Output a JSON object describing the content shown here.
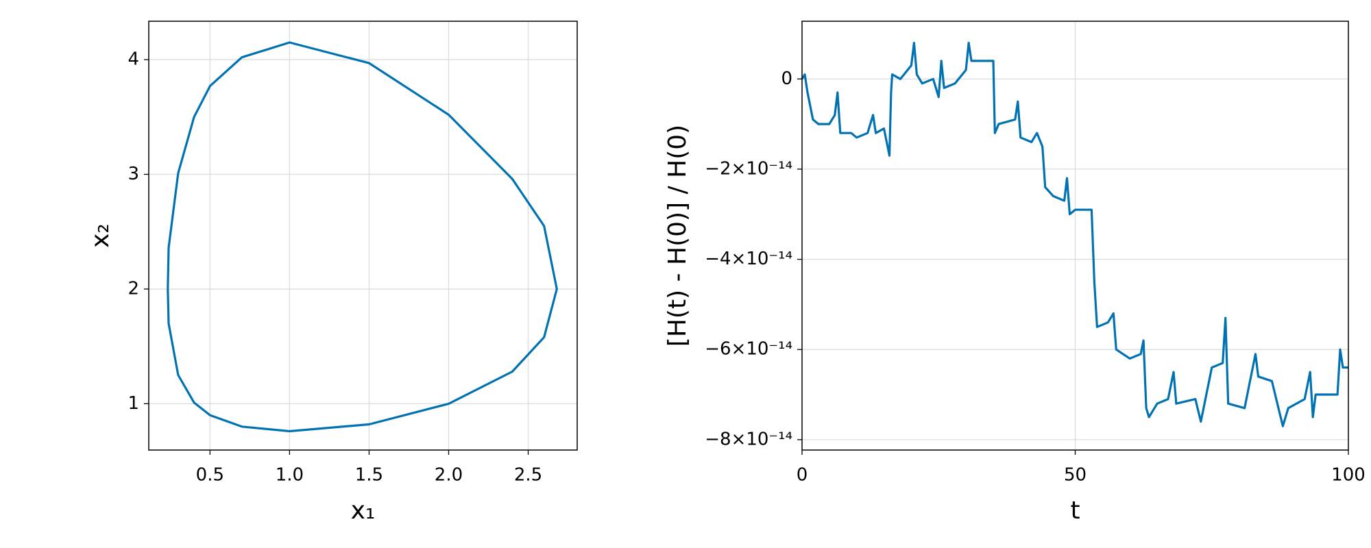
{
  "chart_data": [
    {
      "type": "line",
      "xlabel": "x₁",
      "ylabel": "x₂",
      "color": "#0072b2",
      "grid": true,
      "x": [
        0.235,
        0.24,
        0.3,
        0.4,
        0.5,
        0.7,
        1.0,
        1.5,
        2.0,
        2.4,
        2.6,
        2.68,
        2.6,
        2.4,
        2.0,
        1.5,
        1.0,
        0.7,
        0.5,
        0.4,
        0.3,
        0.24,
        0.235
      ],
      "y": [
        2.0,
        2.36,
        3.01,
        3.5,
        3.77,
        4.02,
        4.15,
        3.97,
        3.52,
        2.96,
        2.55,
        2.0,
        1.58,
        1.28,
        1.0,
        0.82,
        0.76,
        0.8,
        0.9,
        1.01,
        1.25,
        1.7,
        2.0
      ],
      "xlim": [
        0.115,
        2.808
      ],
      "ylim": [
        0.596,
        4.335
      ],
      "xticks": [
        0.5,
        {
          "value": 1,
          "label": "1.0"
        },
        1.5,
        {
          "value": 2,
          "label": "2.0"
        },
        2.5
      ],
      "yticks": [
        1,
        2,
        3,
        4
      ]
    },
    {
      "type": "line",
      "xlabel": "t",
      "ylabel": "[H(t) - H(0)] / H(0)",
      "color": "#0072b2",
      "grid": true,
      "x": [
        0,
        0.5,
        1,
        2,
        3,
        5,
        6,
        6.5,
        7,
        9,
        10,
        12,
        13,
        13.5,
        15,
        16,
        16.3,
        16.5,
        18,
        20,
        20.5,
        21,
        22,
        24,
        25,
        25.5,
        26,
        28,
        30,
        30.5,
        31,
        33,
        35,
        35.3,
        36,
        39,
        39.5,
        40,
        42,
        43,
        44,
        44.5,
        46,
        48,
        48.5,
        49,
        50,
        53,
        53.5,
        54,
        56,
        57,
        57.5,
        60,
        62,
        62.5,
        63,
        63.5,
        65,
        67,
        68,
        68.5,
        72,
        73,
        74,
        75,
        77,
        77.5,
        78,
        81,
        82,
        83,
        83.5,
        86,
        87,
        88,
        89,
        92,
        93,
        93.5,
        94,
        98,
        98.5,
        99,
        100
      ],
      "y": [
        0,
        1e-15,
        -3e-15,
        -9e-15,
        -1e-14,
        -1e-14,
        -8e-15,
        -3e-15,
        -1.2e-14,
        -1.2e-14,
        -1.3e-14,
        -1.2e-14,
        -8e-15,
        -1.2e-14,
        -1.1e-14,
        -1.7e-14,
        -3e-15,
        1e-15,
        0,
        3e-15,
        8e-15,
        1e-15,
        -1e-15,
        0,
        -4e-15,
        4e-15,
        -2e-15,
        -1e-15,
        2e-15,
        8e-15,
        4e-15,
        4e-15,
        4e-15,
        -1.2e-14,
        -1e-14,
        -9e-15,
        -5e-15,
        -1.3e-14,
        -1.4e-14,
        -1.2e-14,
        -1.5e-14,
        -2.4e-14,
        -2.6e-14,
        -2.7e-14,
        -2.2e-14,
        -3e-14,
        -2.9e-14,
        -2.9e-14,
        -4.5e-14,
        -5.5e-14,
        -5.4e-14,
        -5.2e-14,
        -6e-14,
        -6.2e-14,
        -6.1e-14,
        -5.8e-14,
        -7.3e-14,
        -7.5e-14,
        -7.2e-14,
        -7.1e-14,
        -6.5e-14,
        -7.2e-14,
        -7.1e-14,
        -7.6e-14,
        -7e-14,
        -6.4e-14,
        -6.3e-14,
        -5.3e-14,
        -7.2e-14,
        -7.3e-14,
        -6.7e-14,
        -6.1e-14,
        -6.6e-14,
        -6.7e-14,
        -7.2e-14,
        -7.7e-14,
        -7.3e-14,
        -7.1e-14,
        -6.5e-14,
        -7.5e-14,
        -7e-14,
        -7e-14,
        -6e-14,
        -6.4e-14,
        -6.4e-14
      ],
      "xlim": [
        0,
        100
      ],
      "ylim": [
        -8.23e-14,
        1.28e-14
      ],
      "xticks": [
        0,
        50,
        100
      ],
      "yticks": [
        0,
        {
          "value": -2e-14,
          "label": "−2×10⁻¹⁴"
        },
        {
          "value": -4e-14,
          "label": "−4×10⁻¹⁴"
        },
        {
          "value": -6e-14,
          "label": "−6×10⁻¹⁴"
        },
        {
          "value": -8e-14,
          "label": "−8×10⁻¹⁴"
        }
      ]
    }
  ]
}
